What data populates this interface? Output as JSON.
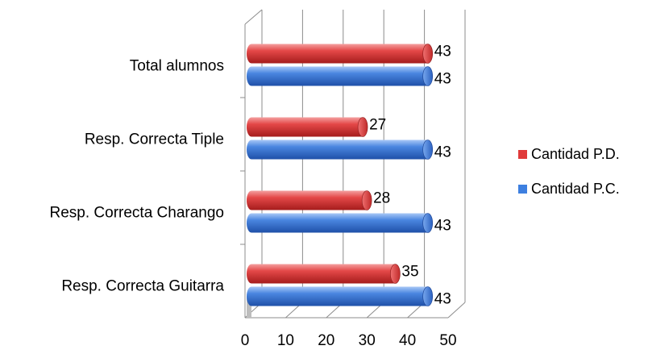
{
  "chart_data": {
    "type": "bar",
    "orientation": "horizontal",
    "style": "3d-cylinder",
    "title": "",
    "xlabel": "",
    "ylabel": "",
    "categories": [
      "Total alumnos",
      "Resp. Correcta Tiple",
      "Resp. Correcta Charango",
      "Resp. Correcta Guitarra"
    ],
    "series": [
      {
        "name": "Cantidad P.D.",
        "color": "#e03a3a",
        "values": [
          43,
          27,
          28,
          35
        ]
      },
      {
        "name": "Cantidad P.C.",
        "color": "#3d7fe0",
        "values": [
          43,
          43,
          43,
          43
        ]
      }
    ],
    "xlim": [
      0,
      50
    ],
    "x_ticks": [
      "0",
      "10",
      "20",
      "30",
      "40",
      "50"
    ],
    "grid": true,
    "legend_position": "right",
    "data_labels": true
  }
}
